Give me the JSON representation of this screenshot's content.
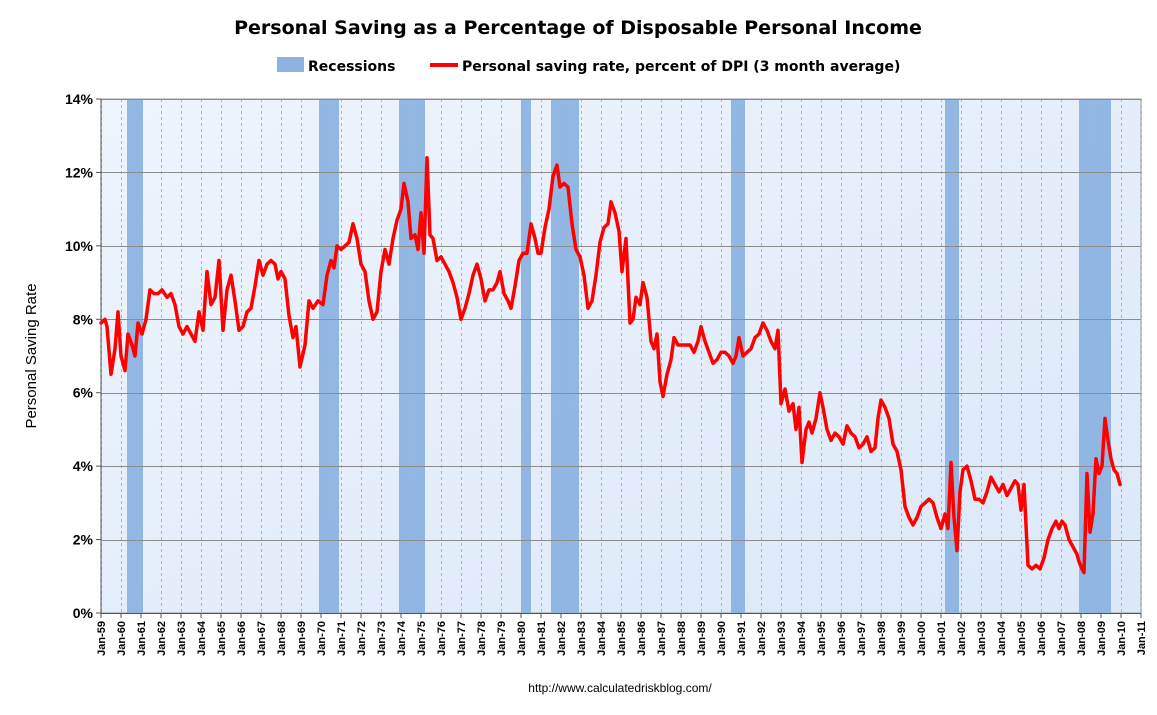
{
  "chart_data": {
    "type": "line",
    "title": "Personal Saving as a Percentage of Disposable Personal Income",
    "ylabel": "Personal Saving Rate",
    "xlabel": "",
    "ylim": [
      0,
      14
    ],
    "yticks": [
      0,
      2,
      4,
      6,
      8,
      10,
      12,
      14
    ],
    "ytick_labels": [
      "0%",
      "2%",
      "4%",
      "6%",
      "8%",
      "10%",
      "12%",
      "14%"
    ],
    "xlim": [
      1959.0,
      2011.0
    ],
    "xtick_labels": [
      "Jan-59",
      "Jan-60",
      "Jan-61",
      "Jan-62",
      "Jan-63",
      "Jan-64",
      "Jan-65",
      "Jan-66",
      "Jan-67",
      "Jan-68",
      "Jan-69",
      "Jan-70",
      "Jan-71",
      "Jan-72",
      "Jan-73",
      "Jan-74",
      "Jan-75",
      "Jan-76",
      "Jan-77",
      "Jan-78",
      "Jan-79",
      "Jan-80",
      "Jan-81",
      "Jan-82",
      "Jan-83",
      "Jan-84",
      "Jan-85",
      "Jan-86",
      "Jan-87",
      "Jan-88",
      "Jan-89",
      "Jan-90",
      "Jan-91",
      "Jan-92",
      "Jan-93",
      "Jan-94",
      "Jan-95",
      "Jan-96",
      "Jan-97",
      "Jan-98",
      "Jan-99",
      "Jan-00",
      "Jan-01",
      "Jan-02",
      "Jan-03",
      "Jan-04",
      "Jan-05",
      "Jan-06",
      "Jan-07",
      "Jan-08",
      "Jan-09",
      "Jan-10",
      "Jan-11"
    ],
    "grid": true,
    "legend_position": "top",
    "legend": [
      {
        "label": "Recessions",
        "kind": "bar",
        "color": "#8db3e2"
      },
      {
        "label": "Personal saving rate, percent of DPI (3 month average)",
        "kind": "line",
        "color": "#ff0000"
      }
    ],
    "recessions": [
      {
        "start": 1960.3,
        "end": 1961.1
      },
      {
        "start": 1969.9,
        "end": 1970.9
      },
      {
        "start": 1973.9,
        "end": 1975.2
      },
      {
        "start": 1980.0,
        "end": 1980.5
      },
      {
        "start": 1981.5,
        "end": 1982.9
      },
      {
        "start": 1990.5,
        "end": 1991.2
      },
      {
        "start": 2001.2,
        "end": 2001.9
      },
      {
        "start": 2007.9,
        "end": 2009.5
      }
    ],
    "series": [
      {
        "name": "Personal saving rate, percent of DPI (3 month average)",
        "color": "#ff0000",
        "points": [
          [
            1959.0,
            7.9
          ],
          [
            1959.2,
            8.0
          ],
          [
            1959.3,
            7.8
          ],
          [
            1959.5,
            6.5
          ],
          [
            1959.7,
            7.2
          ],
          [
            1959.85,
            8.2
          ],
          [
            1960.0,
            7.0
          ],
          [
            1960.2,
            6.6
          ],
          [
            1960.35,
            7.6
          ],
          [
            1960.55,
            7.3
          ],
          [
            1960.7,
            7.0
          ],
          [
            1960.85,
            7.9
          ],
          [
            1961.05,
            7.6
          ],
          [
            1961.25,
            8.0
          ],
          [
            1961.45,
            8.8
          ],
          [
            1961.65,
            8.7
          ],
          [
            1961.85,
            8.7
          ],
          [
            1962.05,
            8.8
          ],
          [
            1962.3,
            8.6
          ],
          [
            1962.5,
            8.7
          ],
          [
            1962.7,
            8.4
          ],
          [
            1962.9,
            7.8
          ],
          [
            1963.1,
            7.6
          ],
          [
            1963.3,
            7.8
          ],
          [
            1963.5,
            7.6
          ],
          [
            1963.7,
            7.4
          ],
          [
            1963.9,
            8.2
          ],
          [
            1964.1,
            7.7
          ],
          [
            1964.3,
            9.3
          ],
          [
            1964.5,
            8.4
          ],
          [
            1964.7,
            8.6
          ],
          [
            1964.9,
            9.6
          ],
          [
            1965.1,
            7.7
          ],
          [
            1965.3,
            8.8
          ],
          [
            1965.5,
            9.2
          ],
          [
            1965.7,
            8.5
          ],
          [
            1965.9,
            7.7
          ],
          [
            1966.1,
            7.8
          ],
          [
            1966.3,
            8.2
          ],
          [
            1966.5,
            8.3
          ],
          [
            1966.7,
            8.9
          ],
          [
            1966.9,
            9.6
          ],
          [
            1967.1,
            9.2
          ],
          [
            1967.3,
            9.5
          ],
          [
            1967.5,
            9.6
          ],
          [
            1967.7,
            9.5
          ],
          [
            1967.85,
            9.1
          ],
          [
            1968.0,
            9.3
          ],
          [
            1968.2,
            9.1
          ],
          [
            1968.4,
            8.1
          ],
          [
            1968.6,
            7.5
          ],
          [
            1968.75,
            7.8
          ],
          [
            1968.95,
            6.7
          ],
          [
            1969.2,
            7.3
          ],
          [
            1969.4,
            8.5
          ],
          [
            1969.6,
            8.3
          ],
          [
            1969.85,
            8.5
          ],
          [
            1970.1,
            8.4
          ],
          [
            1970.3,
            9.2
          ],
          [
            1970.5,
            9.6
          ],
          [
            1970.65,
            9.4
          ],
          [
            1970.8,
            10.0
          ],
          [
            1971.0,
            9.9
          ],
          [
            1971.2,
            10.0
          ],
          [
            1971.4,
            10.1
          ],
          [
            1971.6,
            10.6
          ],
          [
            1971.8,
            10.2
          ],
          [
            1972.0,
            9.5
          ],
          [
            1972.2,
            9.3
          ],
          [
            1972.4,
            8.5
          ],
          [
            1972.6,
            8.0
          ],
          [
            1972.8,
            8.2
          ],
          [
            1973.0,
            9.3
          ],
          [
            1973.2,
            9.9
          ],
          [
            1973.4,
            9.5
          ],
          [
            1973.6,
            10.2
          ],
          [
            1973.8,
            10.7
          ],
          [
            1974.0,
            11.0
          ],
          [
            1974.15,
            11.7
          ],
          [
            1974.35,
            11.2
          ],
          [
            1974.5,
            10.2
          ],
          [
            1974.7,
            10.3
          ],
          [
            1974.85,
            9.9
          ],
          [
            1975.0,
            10.9
          ],
          [
            1975.15,
            9.8
          ],
          [
            1975.3,
            12.4
          ],
          [
            1975.45,
            10.3
          ],
          [
            1975.6,
            10.2
          ],
          [
            1975.8,
            9.6
          ],
          [
            1976.0,
            9.7
          ],
          [
            1976.2,
            9.5
          ],
          [
            1976.4,
            9.3
          ],
          [
            1976.6,
            9.0
          ],
          [
            1976.8,
            8.6
          ],
          [
            1977.0,
            8.0
          ],
          [
            1977.2,
            8.3
          ],
          [
            1977.4,
            8.7
          ],
          [
            1977.6,
            9.2
          ],
          [
            1977.8,
            9.5
          ],
          [
            1978.0,
            9.1
          ],
          [
            1978.2,
            8.5
          ],
          [
            1978.4,
            8.8
          ],
          [
            1978.6,
            8.8
          ],
          [
            1978.8,
            9.0
          ],
          [
            1978.95,
            9.3
          ],
          [
            1979.15,
            8.7
          ],
          [
            1979.35,
            8.5
          ],
          [
            1979.5,
            8.3
          ],
          [
            1979.7,
            8.9
          ],
          [
            1979.9,
            9.6
          ],
          [
            1980.1,
            9.8
          ],
          [
            1980.3,
            9.8
          ],
          [
            1980.5,
            10.6
          ],
          [
            1980.7,
            10.2
          ],
          [
            1980.85,
            9.8
          ],
          [
            1981.0,
            9.8
          ],
          [
            1981.2,
            10.5
          ],
          [
            1981.4,
            11.0
          ],
          [
            1981.6,
            11.9
          ],
          [
            1981.8,
            12.2
          ],
          [
            1981.95,
            11.6
          ],
          [
            1982.15,
            11.7
          ],
          [
            1982.35,
            11.6
          ],
          [
            1982.55,
            10.6
          ],
          [
            1982.75,
            9.9
          ],
          [
            1982.95,
            9.7
          ],
          [
            1983.15,
            9.2
          ],
          [
            1983.35,
            8.3
          ],
          [
            1983.55,
            8.5
          ],
          [
            1983.75,
            9.2
          ],
          [
            1983.95,
            10.1
          ],
          [
            1984.15,
            10.5
          ],
          [
            1984.35,
            10.6
          ],
          [
            1984.5,
            11.2
          ],
          [
            1984.7,
            10.9
          ],
          [
            1984.9,
            10.4
          ],
          [
            1985.05,
            9.3
          ],
          [
            1985.25,
            10.2
          ],
          [
            1985.45,
            7.9
          ],
          [
            1985.6,
            8.0
          ],
          [
            1985.75,
            8.6
          ],
          [
            1985.95,
            8.4
          ],
          [
            1986.1,
            9.0
          ],
          [
            1986.3,
            8.6
          ],
          [
            1986.5,
            7.4
          ],
          [
            1986.65,
            7.2
          ],
          [
            1986.8,
            7.6
          ],
          [
            1986.95,
            6.3
          ],
          [
            1987.1,
            5.9
          ],
          [
            1987.3,
            6.5
          ],
          [
            1987.5,
            6.9
          ],
          [
            1987.65,
            7.5
          ],
          [
            1987.85,
            7.3
          ],
          [
            1988.05,
            7.3
          ],
          [
            1988.25,
            7.3
          ],
          [
            1988.45,
            7.3
          ],
          [
            1988.65,
            7.1
          ],
          [
            1988.85,
            7.4
          ],
          [
            1989.0,
            7.8
          ],
          [
            1989.2,
            7.4
          ],
          [
            1989.4,
            7.1
          ],
          [
            1989.6,
            6.8
          ],
          [
            1989.8,
            6.9
          ],
          [
            1990.0,
            7.1
          ],
          [
            1990.2,
            7.1
          ],
          [
            1990.4,
            7.0
          ],
          [
            1990.6,
            6.8
          ],
          [
            1990.75,
            7.0
          ],
          [
            1990.9,
            7.5
          ],
          [
            1991.1,
            7.0
          ],
          [
            1991.3,
            7.1
          ],
          [
            1991.5,
            7.2
          ],
          [
            1991.7,
            7.5
          ],
          [
            1991.9,
            7.6
          ],
          [
            1992.1,
            7.9
          ],
          [
            1992.3,
            7.7
          ],
          [
            1992.5,
            7.4
          ],
          [
            1992.7,
            7.2
          ],
          [
            1992.85,
            7.7
          ],
          [
            1993.0,
            5.7
          ],
          [
            1993.2,
            6.1
          ],
          [
            1993.4,
            5.5
          ],
          [
            1993.6,
            5.7
          ],
          [
            1993.75,
            5.0
          ],
          [
            1993.9,
            5.6
          ],
          [
            1994.05,
            4.1
          ],
          [
            1994.25,
            5.0
          ],
          [
            1994.4,
            5.2
          ],
          [
            1994.55,
            4.9
          ],
          [
            1994.75,
            5.3
          ],
          [
            1994.95,
            6.0
          ],
          [
            1995.1,
            5.6
          ],
          [
            1995.3,
            5.0
          ],
          [
            1995.5,
            4.7
          ],
          [
            1995.7,
            4.9
          ],
          [
            1995.9,
            4.8
          ],
          [
            1996.1,
            4.6
          ],
          [
            1996.3,
            5.1
          ],
          [
            1996.5,
            4.9
          ],
          [
            1996.7,
            4.8
          ],
          [
            1996.9,
            4.5
          ],
          [
            1997.1,
            4.6
          ],
          [
            1997.3,
            4.8
          ],
          [
            1997.5,
            4.4
          ],
          [
            1997.7,
            4.5
          ],
          [
            1997.85,
            5.3
          ],
          [
            1998.0,
            5.8
          ],
          [
            1998.2,
            5.6
          ],
          [
            1998.4,
            5.3
          ],
          [
            1998.6,
            4.6
          ],
          [
            1998.8,
            4.4
          ],
          [
            1999.0,
            3.9
          ],
          [
            1999.2,
            2.9
          ],
          [
            1999.4,
            2.6
          ],
          [
            1999.6,
            2.4
          ],
          [
            1999.8,
            2.6
          ],
          [
            2000.0,
            2.9
          ],
          [
            2000.2,
            3.0
          ],
          [
            2000.4,
            3.1
          ],
          [
            2000.6,
            3.0
          ],
          [
            2000.8,
            2.6
          ],
          [
            2001.0,
            2.3
          ],
          [
            2001.2,
            2.7
          ],
          [
            2001.35,
            2.3
          ],
          [
            2001.5,
            4.1
          ],
          [
            2001.65,
            2.6
          ],
          [
            2001.8,
            1.7
          ],
          [
            2001.95,
            3.3
          ],
          [
            2002.1,
            3.9
          ],
          [
            2002.3,
            4.0
          ],
          [
            2002.5,
            3.6
          ],
          [
            2002.7,
            3.1
          ],
          [
            2002.9,
            3.1
          ],
          [
            2003.1,
            3.0
          ],
          [
            2003.3,
            3.3
          ],
          [
            2003.5,
            3.7
          ],
          [
            2003.7,
            3.5
          ],
          [
            2003.9,
            3.3
          ],
          [
            2004.1,
            3.5
          ],
          [
            2004.3,
            3.2
          ],
          [
            2004.5,
            3.4
          ],
          [
            2004.7,
            3.6
          ],
          [
            2004.85,
            3.5
          ],
          [
            2005.0,
            2.8
          ],
          [
            2005.15,
            3.5
          ],
          [
            2005.35,
            1.3
          ],
          [
            2005.55,
            1.2
          ],
          [
            2005.75,
            1.3
          ],
          [
            2005.95,
            1.2
          ],
          [
            2006.15,
            1.5
          ],
          [
            2006.35,
            2.0
          ],
          [
            2006.55,
            2.3
          ],
          [
            2006.75,
            2.5
          ],
          [
            2006.9,
            2.3
          ],
          [
            2007.05,
            2.5
          ],
          [
            2007.2,
            2.4
          ],
          [
            2007.4,
            2.0
          ],
          [
            2007.6,
            1.8
          ],
          [
            2007.8,
            1.6
          ],
          [
            2007.9,
            1.4
          ],
          [
            2008.05,
            1.2
          ],
          [
            2008.15,
            1.1
          ],
          [
            2008.3,
            3.8
          ],
          [
            2008.45,
            2.2
          ],
          [
            2008.6,
            2.7
          ],
          [
            2008.75,
            4.2
          ],
          [
            2008.9,
            3.8
          ],
          [
            2009.05,
            4.0
          ],
          [
            2009.2,
            5.3
          ],
          [
            2009.35,
            4.7
          ],
          [
            2009.5,
            4.2
          ],
          [
            2009.65,
            3.9
          ],
          [
            2009.8,
            3.8
          ],
          [
            2009.95,
            3.5
          ]
        ]
      }
    ],
    "footer": "http://www.calculatedriskblog.com/"
  }
}
